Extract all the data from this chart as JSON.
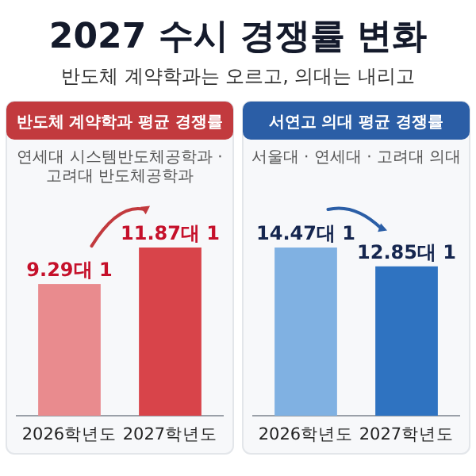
{
  "chart_data": [
    {
      "type": "other",
      "title": "2027 수시 경쟁률 변화",
      "subtitle": "반도체 계약학과는 오르고, 의대는 내리고"
    },
    {
      "type": "bar",
      "title": "반도체 계약학과 평균 경쟁률",
      "subtitle": "연세대 시스템반도체공학과 · 고려대 반도체공학과",
      "categories": [
        "2026학년도",
        "2027학년도"
      ],
      "values": [
        9.29,
        11.87
      ],
      "value_labels": [
        "9.29대 1",
        "11.87대 1"
      ],
      "colors": [
        "#e98b8e",
        "#d8444a"
      ]
    },
    {
      "type": "bar",
      "title": "서연고 의대 평균 경쟁률",
      "subtitle": "서울대 · 연세대 · 고려대 의대",
      "categories": [
        "2026학년도",
        "2027학년도"
      ],
      "values": [
        14.47,
        12.85
      ],
      "value_labels": [
        "14.47대 1",
        "12.85대 1"
      ],
      "colors": [
        "#80b1e2",
        "#2f73c1"
      ]
    }
  ]
}
